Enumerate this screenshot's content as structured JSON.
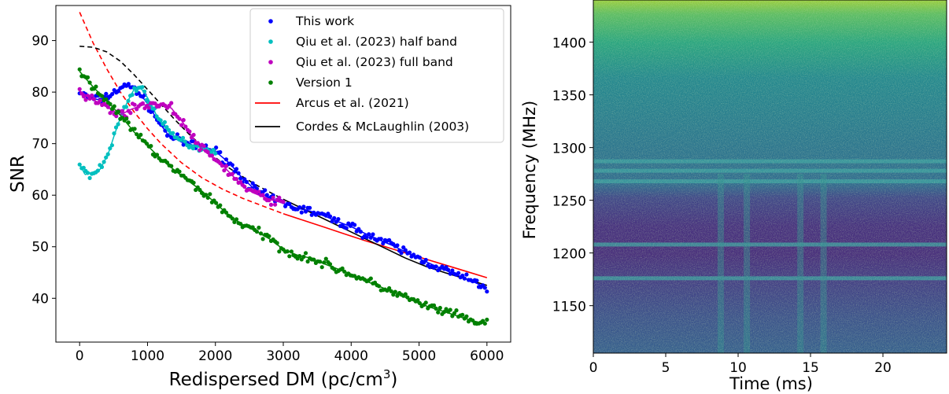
{
  "chart_data": [
    {
      "type": "scatter",
      "xlabel": "Redispersed DM (pc/cm",
      "xlabel_sup": "3",
      "xlabel_close": ")",
      "ylabel": "SNR",
      "xlim": [
        -350,
        6350
      ],
      "ylim": [
        31.5,
        96.8
      ],
      "xticks": [
        "0",
        "1000",
        "2000",
        "3000",
        "4000",
        "5000",
        "6000"
      ],
      "xtick_values": [
        0,
        1000,
        2000,
        3000,
        4000,
        5000,
        6000
      ],
      "yticks": [
        "40",
        "50",
        "60",
        "70",
        "80",
        "90"
      ],
      "ytick_values": [
        40,
        50,
        60,
        70,
        80,
        90
      ],
      "legend_position": "top-right",
      "series": [
        {
          "name": "This work",
          "kind": "points",
          "color": "#0000ff",
          "trend": [
            [
              0,
              80.0
            ],
            [
              150,
              78.8
            ],
            [
              300,
              78.5
            ],
            [
              450,
              79.5
            ],
            [
              600,
              80.8
            ],
            [
              750,
              81.2
            ],
            [
              850,
              80.3
            ],
            [
              1000,
              77.8
            ],
            [
              1150,
              74.5
            ],
            [
              1300,
              71.8
            ],
            [
              1500,
              70.3
            ],
            [
              1700,
              69.6
            ],
            [
              1850,
              69.4
            ],
            [
              2000,
              68.5
            ],
            [
              2200,
              66.3
            ],
            [
              2400,
              63.3
            ],
            [
              2600,
              60.9
            ],
            [
              2800,
              59.4
            ],
            [
              3000,
              58.4
            ],
            [
              3200,
              57.5
            ],
            [
              3400,
              56.9
            ],
            [
              3600,
              56.0
            ],
            [
              3800,
              54.9
            ],
            [
              4000,
              53.9
            ],
            [
              4200,
              52.6
            ],
            [
              4400,
              51.4
            ],
            [
              4600,
              50.3
            ],
            [
              4800,
              49.0
            ],
            [
              5000,
              47.7
            ],
            [
              5200,
              46.5
            ],
            [
              5400,
              45.4
            ],
            [
              5600,
              44.3
            ],
            [
              5800,
              43.2
            ],
            [
              6000,
              42.0
            ]
          ]
        },
        {
          "name": "Qiu et al. (2023) half band",
          "kind": "points",
          "color": "#00bfbf",
          "trend": [
            [
              0,
              66.0
            ],
            [
              80,
              64.0
            ],
            [
              200,
              64.5
            ],
            [
              300,
              65.0
            ],
            [
              420,
              68.0
            ],
            [
              520,
              72.0
            ],
            [
              600,
              75.0
            ],
            [
              700,
              78.0
            ],
            [
              800,
              80.5
            ],
            [
              880,
              81.0
            ],
            [
              950,
              80.0
            ],
            [
              1050,
              77.8
            ],
            [
              1150,
              75.0
            ],
            [
              1300,
              72.4
            ],
            [
              1450,
              70.9
            ],
            [
              1600,
              69.9
            ],
            [
              1800,
              69.2
            ],
            [
              2000,
              68.6
            ]
          ]
        },
        {
          "name": "Qiu et al. (2023) full band",
          "kind": "points",
          "color": "#bf00bf",
          "trend": [
            [
              0,
              80.2
            ],
            [
              200,
              78.5
            ],
            [
              400,
              77.1
            ],
            [
              600,
              75.6
            ],
            [
              750,
              76.6
            ],
            [
              900,
              77.4
            ],
            [
              1050,
              77.7
            ],
            [
              1200,
              77.6
            ],
            [
              1350,
              76.9
            ],
            [
              1500,
              74.5
            ],
            [
              1650,
              71.5
            ],
            [
              1800,
              69.0
            ],
            [
              1950,
              67.4
            ],
            [
              2100,
              65.9
            ],
            [
              2250,
              63.8
            ],
            [
              2400,
              61.8
            ],
            [
              2550,
              60.5
            ],
            [
              2700,
              59.7
            ],
            [
              2850,
              59.0
            ],
            [
              3000,
              58.5
            ]
          ]
        },
        {
          "name": "Version 1",
          "kind": "points",
          "color": "#008000",
          "trend": [
            [
              0,
              84.0
            ],
            [
              200,
              81.0
            ],
            [
              400,
              78.3
            ],
            [
              600,
              75.5
            ],
            [
              800,
              72.3
            ],
            [
              1000,
              69.6
            ],
            [
              1200,
              67.0
            ],
            [
              1400,
              64.8
            ],
            [
              1600,
              62.8
            ],
            [
              1800,
              60.8
            ],
            [
              2000,
              58.5
            ],
            [
              2200,
              56.0
            ],
            [
              2400,
              54.3
            ],
            [
              2600,
              53.0
            ],
            [
              2800,
              51.5
            ],
            [
              3000,
              49.5
            ],
            [
              3200,
              48.4
            ],
            [
              3400,
              47.8
            ],
            [
              3600,
              46.7
            ],
            [
              3800,
              45.7
            ],
            [
              4000,
              44.7
            ],
            [
              4200,
              43.4
            ],
            [
              4400,
              42.4
            ],
            [
              4600,
              41.3
            ],
            [
              4800,
              40.2
            ],
            [
              5000,
              39.0
            ],
            [
              5200,
              38.1
            ],
            [
              5400,
              37.3
            ],
            [
              5600,
              36.4
            ],
            [
              5800,
              35.6
            ],
            [
              6000,
              35.0
            ]
          ]
        },
        {
          "name": "Arcus et al. (2021)",
          "kind": "line",
          "color": "#ff0000",
          "values": [
            [
              0,
              95.5
            ],
            [
              200,
              89.5
            ],
            [
              400,
              84.5
            ],
            [
              600,
              80.0
            ],
            [
              800,
              76.2
            ],
            [
              1000,
              72.9
            ],
            [
              1200,
              70.0
            ],
            [
              1500,
              66.3
            ],
            [
              1800,
              63.4
            ],
            [
              2100,
              61.2
            ],
            [
              2400,
              59.4
            ],
            [
              2700,
              57.9
            ],
            [
              3000,
              56.4
            ],
            [
              3300,
              55.1
            ],
            [
              3600,
              53.8
            ],
            [
              3900,
              52.5
            ],
            [
              4200,
              51.2
            ],
            [
              4500,
              50.0
            ],
            [
              4800,
              48.8
            ],
            [
              5100,
              47.6
            ],
            [
              5400,
              46.4
            ],
            [
              5700,
              45.2
            ],
            [
              6000,
              44.0
            ]
          ],
          "solid_from": 3000
        },
        {
          "name": "Cordes & McLaughlin (2003)",
          "kind": "line",
          "color": "#000000",
          "values": [
            [
              0,
              88.9
            ],
            [
              200,
              88.7
            ],
            [
              400,
              87.8
            ],
            [
              600,
              86.0
            ],
            [
              800,
              83.4
            ],
            [
              1000,
              80.5
            ],
            [
              1200,
              77.6
            ],
            [
              1400,
              74.7
            ],
            [
              1600,
              72.0
            ],
            [
              1800,
              69.5
            ],
            [
              2000,
              67.3
            ],
            [
              2200,
              65.3
            ],
            [
              2400,
              63.6
            ],
            [
              2600,
              62.0
            ],
            [
              2800,
              60.6
            ],
            [
              3000,
              59.2
            ],
            [
              3300,
              57.3
            ],
            [
              3600,
              55.4
            ],
            [
              3900,
              53.5
            ],
            [
              4200,
              51.6
            ],
            [
              4500,
              49.7
            ],
            [
              4800,
              47.8
            ],
            [
              5100,
              46.2
            ],
            [
              5400,
              44.9
            ],
            [
              5700,
              43.7
            ],
            [
              6000,
              42.5
            ]
          ],
          "solid_from": 3000
        }
      ]
    },
    {
      "type": "heatmap",
      "xlabel": "Time (ms)",
      "ylabel": "Frequency (MHz)",
      "xlim": [
        0,
        24.4
      ],
      "ylim": [
        1105,
        1440
      ],
      "xticks": [
        "0",
        "5",
        "10",
        "15",
        "20"
      ],
      "xtick_values": [
        0,
        5,
        10,
        15,
        20
      ],
      "yticks": [
        "1150",
        "1200",
        "1250",
        "1300",
        "1350",
        "1400"
      ],
      "ytick_values": [
        1150,
        1200,
        1250,
        1300,
        1350,
        1400
      ],
      "colormap": "viridis",
      "bright_channels_mhz": [
        1176,
        1208,
        1268,
        1278,
        1287
      ],
      "low_band_mhz": [
        1105,
        1275
      ],
      "burst_times_ms": [
        8.8,
        10.6,
        14.3,
        15.9
      ]
    }
  ]
}
